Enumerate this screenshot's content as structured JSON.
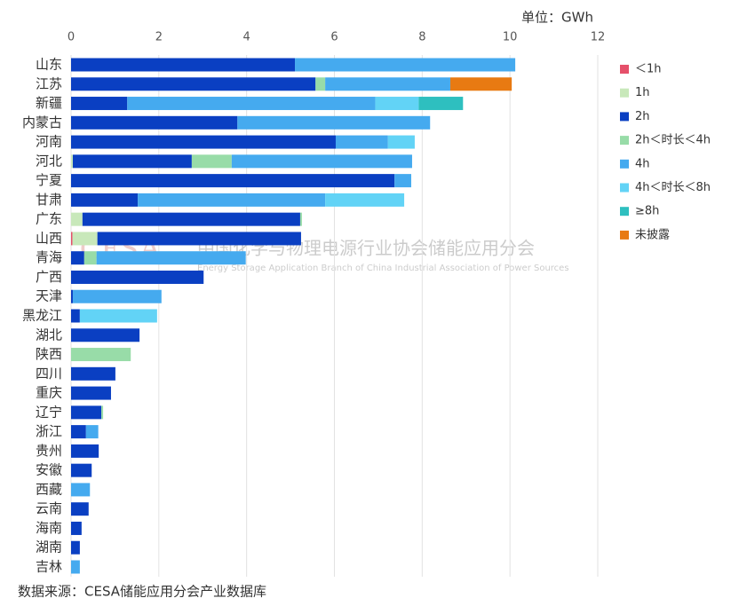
{
  "chart_data": {
    "type": "stacked-bar-horizontal",
    "unit_label": "单位：GWh",
    "watermark": "中国化学与物理电源行业协会储能应用分会",
    "watermark_logo": "CESA",
    "watermark_subtitle": "Energy Storage Application Branch of China Industrial Association of Power Sources",
    "source": "数据来源：CESA储能应用分会产业数据库",
    "categories": [
      "山东",
      "江苏",
      "新疆",
      "内蒙古",
      "河南",
      "河北",
      "宁夏",
      "甘肃",
      "广东",
      "山西",
      "青海",
      "广西",
      "天津",
      "黑龙江",
      "湖北",
      "陕西",
      "四川",
      "重庆",
      "辽宁",
      "浙江",
      "贵州",
      "安徽",
      "西藏",
      "云南",
      "海南",
      "湖南",
      "吉林"
    ],
    "xlim": [
      0,
      12
    ],
    "xticks": [
      0,
      2,
      4,
      6,
      8,
      10,
      12
    ],
    "grid": true,
    "legend_position": "right",
    "series": [
      {
        "name": "＜1h",
        "color": "#e5506a",
        "values": [
          0,
          0,
          0,
          0,
          0,
          0,
          0,
          0,
          0,
          0.03,
          0,
          0,
          0,
          0,
          0,
          0,
          0,
          0,
          0,
          0,
          0,
          0,
          0,
          0,
          0,
          0,
          0
        ]
      },
      {
        "name": "1h",
        "color": "#c8e8ba",
        "values": [
          0,
          0,
          0,
          0,
          0,
          0.04,
          0,
          0,
          0.26,
          0.57,
          0,
          0,
          0,
          0,
          0,
          0,
          0,
          0,
          0,
          0,
          0,
          0,
          0,
          0,
          0,
          0,
          0
        ]
      },
      {
        "name": "2h",
        "color": "#0a3fc2",
        "values": [
          5.1,
          5.57,
          1.28,
          3.79,
          6.03,
          2.71,
          7.37,
          1.52,
          4.96,
          4.64,
          0.3,
          3.02,
          0.04,
          0.2,
          1.56,
          0,
          1.01,
          0.91,
          0.69,
          0.34,
          0.63,
          0.47,
          0,
          0.4,
          0.24,
          0.2,
          0
        ]
      },
      {
        "name": "2h＜时长＜4h",
        "color": "#98dca8",
        "values": [
          0,
          0.22,
          0,
          0,
          0,
          0.91,
          0,
          0,
          0.04,
          0,
          0.28,
          0,
          0,
          0,
          0,
          1.36,
          0,
          0,
          0.04,
          0,
          0,
          0,
          0,
          0,
          0,
          0,
          0
        ]
      },
      {
        "name": "4h",
        "color": "#45aaef",
        "values": [
          5.02,
          2.85,
          5.65,
          4.39,
          1.19,
          4.11,
          0.38,
          4.27,
          0,
          0,
          3.4,
          0,
          2.02,
          0,
          0,
          0,
          0,
          0,
          0,
          0.28,
          0,
          0,
          0.43,
          0,
          0,
          0,
          0.2
        ]
      },
      {
        "name": "4h＜时长＜8h",
        "color": "#62d3f6",
        "values": [
          0,
          0,
          0.99,
          0,
          0.61,
          0,
          0,
          1.8,
          0,
          0,
          0,
          0,
          0,
          1.76,
          0,
          0,
          0,
          0,
          0,
          0,
          0,
          0,
          0,
          0,
          0,
          0,
          0
        ]
      },
      {
        "name": "≥8h",
        "color": "#2ebfbf",
        "values": [
          0,
          0,
          1.01,
          0,
          0,
          0,
          0,
          0,
          0,
          0,
          0,
          0,
          0,
          0,
          0,
          0,
          0,
          0,
          0,
          0,
          0,
          0,
          0,
          0,
          0,
          0,
          0
        ]
      },
      {
        "name": "未披露",
        "color": "#e87a12",
        "values": [
          0,
          1.4,
          0,
          0,
          0,
          0,
          0,
          0,
          0,
          0,
          0,
          0,
          0,
          0,
          0,
          0,
          0,
          0,
          0,
          0,
          0,
          0,
          0,
          0,
          0,
          0,
          0
        ]
      }
    ]
  }
}
